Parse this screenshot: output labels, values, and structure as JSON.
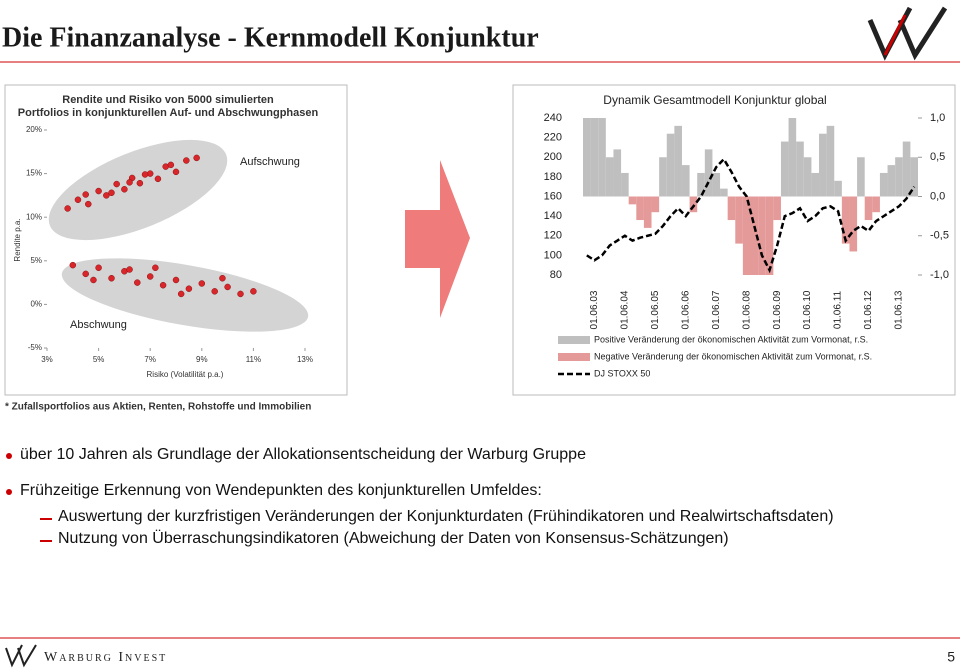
{
  "title": "Die Finanzanalyse - Kernmodell Konjunktur",
  "chart_data": [
    {
      "type": "scatter",
      "title": "Rendite und Risiko von 5000 simulierten Portfolios in konjunkturellen Auf- und Abschwungphasen",
      "x_label": "Risiko (Volatilität p.a.)",
      "y_label": "Rendite p.a.",
      "annotations": [
        "Aufschwung",
        "Abschwung"
      ],
      "xlim": [
        3,
        13
      ],
      "xticks": [
        {
          "value": 3,
          "label": "3%"
        },
        {
          "value": 5,
          "label": "5%"
        },
        {
          "value": 7,
          "label": "7%"
        },
        {
          "value": 9,
          "label": "9%"
        },
        {
          "value": 11,
          "label": "11%"
        },
        {
          "value": 13,
          "label": "13%"
        }
      ],
      "ylim": [
        -5,
        20
      ],
      "yticks": [
        {
          "value": -5,
          "label": "-5%"
        },
        {
          "value": 0,
          "label": "0%"
        },
        {
          "value": 5,
          "label": "5%"
        },
        {
          "value": 10,
          "label": "10%"
        },
        {
          "value": 15,
          "label": "15%"
        },
        {
          "value": 20,
          "label": "20%"
        }
      ],
      "series": [
        {
          "color": "#d9262b",
          "x": [
            3.8,
            4.2,
            4.6,
            5.0,
            5.3,
            5.7,
            6.0,
            6.3,
            6.6,
            7.0,
            7.3,
            7.6,
            8.0,
            8.4,
            8.8,
            5.5,
            6.8,
            4.5,
            7.8,
            6.2
          ],
          "values": [
            11.0,
            12.0,
            11.5,
            13.0,
            12.5,
            13.8,
            13.2,
            14.5,
            13.9,
            15.0,
            14.4,
            15.8,
            15.2,
            16.5,
            16.8,
            12.8,
            14.9,
            12.6,
            16.0,
            14.0
          ]
        },
        {
          "color": "#d9262b",
          "x": [
            4.0,
            4.5,
            5.0,
            5.5,
            6.0,
            6.5,
            7.0,
            7.5,
            8.0,
            8.5,
            9.0,
            9.5,
            10.0,
            10.5,
            11.0,
            6.2,
            8.2,
            9.8,
            4.8,
            7.2
          ],
          "values": [
            4.5,
            3.5,
            4.2,
            3.0,
            3.8,
            2.5,
            3.2,
            2.2,
            2.8,
            1.8,
            2.4,
            1.5,
            2.0,
            1.2,
            1.5,
            4.0,
            1.2,
            3.0,
            2.8,
            4.2
          ]
        }
      ],
      "footnote": "* Zufallsportfolios aus Aktien, Renten, Rohstoffe und Immobilien"
    },
    {
      "type": "bar-line",
      "title": "Dynamik Gesamtmodell Konjunktur global",
      "categories": [
        null,
        "01.06.03",
        null,
        null,
        null,
        "01.06.04",
        null,
        null,
        null,
        "01.06.05",
        null,
        null,
        null,
        "01.06.06",
        null,
        null,
        null,
        "01.06.07",
        null,
        null,
        null,
        "01.06.08",
        null,
        null,
        null,
        "01.06.09",
        null,
        null,
        null,
        "01.06.10",
        null,
        null,
        null,
        "01.06.11",
        null,
        null,
        null,
        "01.06.12",
        null,
        null,
        null,
        "01.06.13",
        null,
        null
      ],
      "ylim": [
        80,
        240
      ],
      "yticks": [
        80,
        100,
        120,
        140,
        160,
        180,
        200,
        220,
        240
      ],
      "y2lim": [
        -1,
        1
      ],
      "y2ticks": [
        {
          "value": -1,
          "label": "-1,0"
        },
        {
          "value": -0.5,
          "label": "-0,5"
        },
        {
          "value": 0,
          "label": "0,0"
        },
        {
          "value": 0.5,
          "label": "0,5"
        },
        {
          "value": 1,
          "label": "1,0"
        }
      ],
      "series": [
        {
          "name": "Positive Veränderung der ökonomischen Aktivität zum Vormonat, r.S.",
          "color": "#bfbfbf",
          "axis": "y2",
          "values": [
            1.0,
            1.0,
            1.0,
            0.5,
            0.6,
            0.3,
            null,
            null,
            null,
            null,
            0.5,
            0.8,
            0.9,
            0.4,
            null,
            0.3,
            0.6,
            0.3,
            0.1,
            null,
            null,
            null,
            null,
            null,
            null,
            null,
            0.7,
            1.0,
            0.7,
            0.5,
            0.3,
            0.8,
            0.9,
            0.2,
            null,
            null,
            0.5,
            null,
            null,
            0.3,
            0.4,
            0.5,
            0.7,
            0.5
          ]
        },
        {
          "name": "Negative Veränderung der ökonomischen Aktivität zum Vormonat, r.S.",
          "color": "#e59a9a",
          "axis": "y2",
          "values": [
            null,
            null,
            null,
            null,
            null,
            null,
            -0.1,
            -0.3,
            -0.4,
            -0.2,
            null,
            null,
            null,
            null,
            -0.2,
            null,
            null,
            null,
            null,
            -0.3,
            -0.6,
            -1.0,
            -1.0,
            -1.0,
            -1.0,
            -0.3,
            null,
            null,
            null,
            null,
            null,
            null,
            null,
            null,
            -0.6,
            -0.7,
            null,
            -0.3,
            -0.2,
            null,
            null,
            null,
            null,
            null
          ]
        },
        {
          "name": "DJ STOXX 50",
          "color": "#000000",
          "type": "line",
          "values": [
            100,
            95,
            100,
            110,
            115,
            120,
            115,
            118,
            120,
            122,
            130,
            140,
            148,
            140,
            150,
            160,
            175,
            190,
            198,
            185,
            170,
            160,
            130,
            100,
            85,
            110,
            140,
            143,
            148,
            135,
            140,
            148,
            150,
            145,
            115,
            125,
            130,
            125,
            135,
            140,
            145,
            150,
            158,
            170
          ]
        }
      ]
    }
  ],
  "bullets": [
    {
      "text": "über 10 Jahren als Grundlage der Allokationsentscheidung der Warburg Gruppe",
      "sub": []
    },
    {
      "text": "Frühzeitige Erkennung von Wendepunkten des konjunkturellen Umfeldes:",
      "sub": [
        "Auswertung der kurzfristigen Veränderungen der Konjunkturdaten (Frühindikatoren und Realwirtschaftsdaten)",
        "Nutzung von Überraschungsindikatoren (Abweichung der Daten von Konsensus-Schätzungen)"
      ]
    }
  ],
  "footer": {
    "company": "Warburg Invest",
    "page": "5"
  }
}
